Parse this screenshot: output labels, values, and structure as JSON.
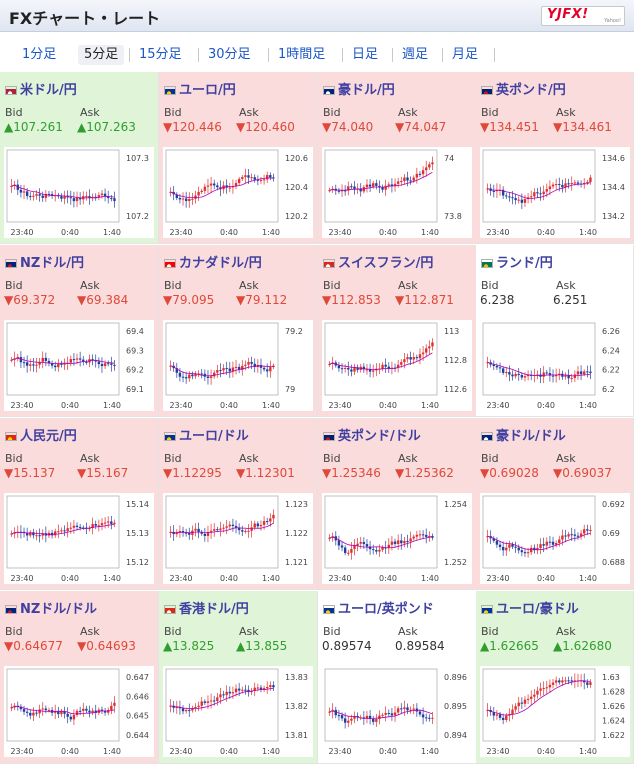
{
  "header": {
    "title": "FXチャート・レート",
    "logo_text": "YJFX!",
    "logo_sub": "Yahoo!"
  },
  "tabs": [
    "1分足",
    "5分足",
    "15分足",
    "30分足",
    "1時間足",
    "日足",
    "週足",
    "月足"
  ],
  "active_tab": 1,
  "labels": {
    "bid": "Bid",
    "ask": "Ask"
  },
  "time_ticks": [
    "23:40",
    "0:40",
    "1:40"
  ],
  "colors": {
    "up": "#2f9e2f",
    "down": "#e0483a",
    "up_bg": "#e0f5d8",
    "down_bg": "#fbdcdc",
    "link": "#1a57c6",
    "ma_line": "#b000b0"
  },
  "pairs": [
    {
      "name": "米ドル/円",
      "flag": "us-jp-flag",
      "state": "up",
      "bid": "▲107.261",
      "ask": "▲107.263",
      "yticks": [
        "107.3",
        "107.2"
      ]
    },
    {
      "name": "ユーロ/円",
      "flag": "eu-jp-flag",
      "state": "down",
      "bid": "▼120.446",
      "ask": "▼120.460",
      "yticks": [
        "120.6",
        "120.4",
        "120.2"
      ]
    },
    {
      "name": "豪ドル/円",
      "flag": "au-jp-flag",
      "state": "down",
      "bid": "▼74.040",
      "ask": "▼74.047",
      "yticks": [
        "74",
        "73.8"
      ]
    },
    {
      "name": "英ポンド/円",
      "flag": "gb-jp-flag",
      "state": "down",
      "bid": "▼134.451",
      "ask": "▼134.461",
      "yticks": [
        "134.6",
        "134.4",
        "134.2"
      ]
    },
    {
      "name": "NZドル/円",
      "flag": "nz-jp-flag",
      "state": "down",
      "bid": "▼69.372",
      "ask": "▼69.384",
      "yticks": [
        "69.4",
        "69.3",
        "69.2",
        "69.1"
      ]
    },
    {
      "name": "カナダドル/円",
      "flag": "ca-jp-flag",
      "state": "down",
      "bid": "▼79.095",
      "ask": "▼79.112",
      "yticks": [
        "79.2",
        "79"
      ]
    },
    {
      "name": "スイスフラン/円",
      "flag": "ch-jp-flag",
      "state": "down",
      "bid": "▼112.853",
      "ask": "▼112.871",
      "yticks": [
        "113",
        "112.8",
        "112.6"
      ]
    },
    {
      "name": "ランド/円",
      "flag": "za-jp-flag",
      "state": "neutral",
      "bid": "6.238",
      "ask": "6.251",
      "yticks": [
        "6.26",
        "6.24",
        "6.22",
        "6.2"
      ]
    },
    {
      "name": "人民元/円",
      "flag": "cn-jp-flag",
      "state": "down",
      "bid": "▼15.137",
      "ask": "▼15.167",
      "yticks": [
        "15.14",
        "15.13",
        "15.12"
      ]
    },
    {
      "name": "ユーロ/ドル",
      "flag": "eu-us-flag",
      "state": "down",
      "bid": "▼1.12295",
      "ask": "▼1.12301",
      "yticks": [
        "1.123",
        "1.122",
        "1.121"
      ]
    },
    {
      "name": "英ポンド/ドル",
      "flag": "gb-us-flag",
      "state": "down",
      "bid": "▼1.25346",
      "ask": "▼1.25362",
      "yticks": [
        "1.254",
        "1.252"
      ]
    },
    {
      "name": "豪ドル/ドル",
      "flag": "au-us-flag",
      "state": "down",
      "bid": "▼0.69028",
      "ask": "▼0.69037",
      "yticks": [
        "0.692",
        "0.69",
        "0.688"
      ]
    },
    {
      "name": "NZドル/ドル",
      "flag": "nz-us-flag",
      "state": "down",
      "bid": "▼0.64677",
      "ask": "▼0.64693",
      "yticks": [
        "0.647",
        "0.646",
        "0.645",
        "0.644"
      ]
    },
    {
      "name": "香港ドル/円",
      "flag": "hk-jp-flag",
      "state": "up",
      "bid": "▲13.825",
      "ask": "▲13.855",
      "yticks": [
        "13.83",
        "13.82",
        "13.81"
      ]
    },
    {
      "name": "ユーロ/英ポンド",
      "flag": "eu-gb-flag",
      "state": "neutral",
      "bid": "0.89574",
      "ask": "0.89584",
      "yticks": [
        "0.896",
        "0.895",
        "0.894"
      ]
    },
    {
      "name": "ユーロ/豪ドル",
      "flag": "eu-au-flag",
      "state": "up",
      "bid": "▲1.62665",
      "ask": "▲1.62680",
      "yticks": [
        "1.63",
        "1.628",
        "1.626",
        "1.624",
        "1.622"
      ]
    }
  ]
}
